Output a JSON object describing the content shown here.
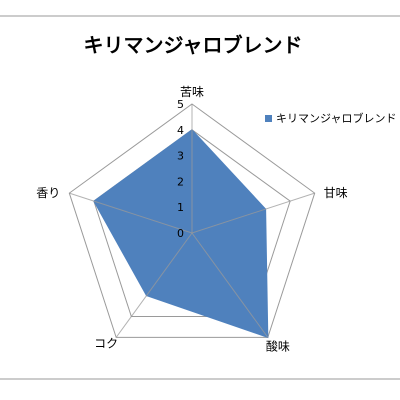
{
  "chart_data": {
    "type": "radar",
    "title": "キリマンジャロブレンド",
    "categories": [
      "苦味",
      "甘味",
      "酸味",
      "コク",
      "香り"
    ],
    "series": [
      {
        "name": "キリマンジャロブレンド",
        "values": [
          4,
          3,
          5,
          3,
          4
        ],
        "color": "#4F81BD"
      }
    ],
    "ticks": [
      "0",
      "1",
      "2",
      "3",
      "4",
      "5"
    ],
    "range": [
      0,
      5
    ],
    "grid": true,
    "legend": "right"
  }
}
